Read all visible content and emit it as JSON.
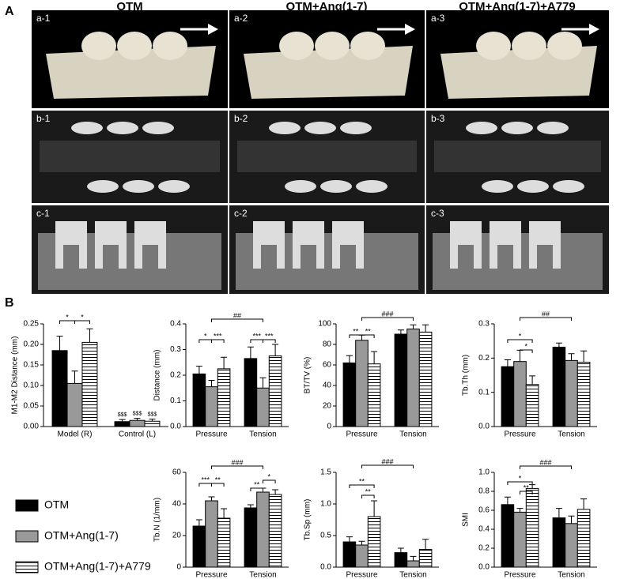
{
  "panel_a": {
    "label": "A",
    "columns": [
      "OTM",
      "OTM+Ang(1-7)",
      "OTM+Ang(1-7)+A779"
    ],
    "tiles": [
      [
        "a-1",
        "a-2",
        "a-3"
      ],
      [
        "b-1",
        "b-2",
        "b-3"
      ],
      [
        "c-1",
        "c-2",
        "c-3"
      ]
    ]
  },
  "panel_b": {
    "label": "B"
  },
  "chart_data": [
    {
      "type": "bar",
      "y_label": "M1-M2 Distance (mm)",
      "categories": [
        "Model (R)",
        "Control (L)"
      ],
      "series": [
        {
          "name": "OTM",
          "color": "#000000",
          "values": [
            0.185,
            0.012
          ],
          "errors": [
            0.035,
            0.005
          ]
        },
        {
          "name": "OTM+Ang(1-7)",
          "color": "#999999",
          "values": [
            0.105,
            0.015
          ],
          "errors": [
            0.03,
            0.005
          ]
        },
        {
          "name": "OTM+Ang(1-7)+A779",
          "color": "#ffffff",
          "pattern": "horizontal-stripes",
          "values": [
            0.205,
            0.013
          ],
          "errors": [
            0.033,
            0.005
          ]
        }
      ],
      "ylim": [
        0,
        0.25
      ],
      "yticks": [
        {
          "value": 0,
          "label": "0.00"
        },
        0.05,
        {
          "value": 0.1,
          "label": "0.10"
        },
        0.15,
        {
          "value": 0.2,
          "label": "0.20"
        },
        0.25
      ],
      "annotations": [
        "*",
        "*",
        "$$$",
        "$$$",
        "$$$"
      ]
    },
    {
      "type": "bar",
      "y_label": "Distance (mm)",
      "categories": [
        "Pressure",
        "Tension"
      ],
      "series": [
        {
          "name": "OTM",
          "color": "#000000",
          "values": [
            0.205,
            0.265
          ],
          "errors": [
            0.03,
            0.045
          ]
        },
        {
          "name": "OTM+Ang(1-7)",
          "color": "#999999",
          "values": [
            0.155,
            0.15
          ],
          "errors": [
            0.025,
            0.04
          ]
        },
        {
          "name": "OTM+Ang(1-7)+A779",
          "color": "#ffffff",
          "pattern": "horizontal-stripes",
          "values": [
            0.225,
            0.275
          ],
          "errors": [
            0.045,
            0.045
          ]
        }
      ],
      "ylim": [
        0,
        0.4
      ],
      "yticks": [
        {
          "value": 0,
          "label": "0.0"
        },
        0.1,
        0.2,
        0.3,
        0.4
      ],
      "annotations": [
        "##",
        "*",
        "***",
        "***",
        "***"
      ]
    },
    {
      "type": "bar",
      "y_label": "BT/TV (%)",
      "categories": [
        "Pressure",
        "Tension"
      ],
      "series": [
        {
          "name": "OTM",
          "color": "#000000",
          "values": [
            62,
            90
          ],
          "errors": [
            7,
            4
          ]
        },
        {
          "name": "OTM+Ang(1-7)",
          "color": "#999999",
          "values": [
            84,
            95
          ],
          "errors": [
            5,
            4
          ]
        },
        {
          "name": "OTM+Ang(1-7)+A779",
          "color": "#ffffff",
          "pattern": "horizontal-stripes",
          "values": [
            61,
            92
          ],
          "errors": [
            12,
            7
          ]
        }
      ],
      "ylim": [
        0,
        100
      ],
      "yticks": [
        0,
        20,
        40,
        60,
        80,
        100
      ],
      "annotations": [
        "###",
        "**",
        "**"
      ]
    },
    {
      "type": "bar",
      "y_label": "Tb.Th (mm)",
      "categories": [
        "Pressure",
        "Tension"
      ],
      "series": [
        {
          "name": "OTM",
          "color": "#000000",
          "values": [
            0.175,
            0.232
          ],
          "errors": [
            0.02,
            0.012
          ]
        },
        {
          "name": "OTM+Ang(1-7)",
          "color": "#999999",
          "values": [
            0.19,
            0.193
          ],
          "errors": [
            0.033,
            0.02
          ]
        },
        {
          "name": "OTM+Ang(1-7)+A779",
          "color": "#ffffff",
          "pattern": "horizontal-stripes",
          "values": [
            0.123,
            0.188
          ],
          "errors": [
            0.025,
            0.033
          ]
        }
      ],
      "ylim": [
        0,
        0.3
      ],
      "yticks": [
        {
          "value": 0,
          "label": "0.0"
        },
        0.1,
        0.2,
        0.3
      ],
      "annotations": [
        "##",
        "*",
        "*"
      ]
    },
    {
      "type": "bar",
      "y_label": "Tb.N (1/mm)",
      "categories": [
        "Pressure",
        "Tension"
      ],
      "series": [
        {
          "name": "OTM",
          "color": "#000000",
          "values": [
            26,
            37.5
          ],
          "errors": [
            4,
            2
          ]
        },
        {
          "name": "OTM+Ang(1-7)",
          "color": "#999999",
          "values": [
            42,
            47.5
          ],
          "errors": [
            2.5,
            2.5
          ]
        },
        {
          "name": "OTM+Ang(1-7)+A779",
          "color": "#ffffff",
          "pattern": "horizontal-stripes",
          "values": [
            31,
            46
          ],
          "errors": [
            6,
            3
          ]
        }
      ],
      "ylim": [
        0,
        60
      ],
      "yticks": [
        0,
        20,
        40,
        60
      ],
      "annotations": [
        "###",
        "***",
        "**",
        "**",
        "*"
      ]
    },
    {
      "type": "bar",
      "y_label": "Tb.Sp (mm)",
      "categories": [
        "Pressure",
        "Tension"
      ],
      "series": [
        {
          "name": "OTM",
          "color": "#000000",
          "values": [
            0.4,
            0.23
          ],
          "errors": [
            0.08,
            0.07
          ]
        },
        {
          "name": "OTM+Ang(1-7)",
          "color": "#999999",
          "values": [
            0.35,
            0.1
          ],
          "errors": [
            0.06,
            0.07
          ]
        },
        {
          "name": "OTM+Ang(1-7)+A779",
          "color": "#ffffff",
          "pattern": "horizontal-stripes",
          "values": [
            0.8,
            0.28
          ],
          "errors": [
            0.25,
            0.16
          ]
        }
      ],
      "ylim": [
        0,
        1.5
      ],
      "yticks": [
        {
          "value": 0,
          "label": "0.0"
        },
        0.5,
        {
          "value": 1,
          "label": "1.0"
        },
        1.5
      ],
      "annotations": [
        "###",
        "**",
        "**"
      ]
    },
    {
      "type": "bar",
      "y_label": "SMI",
      "categories": [
        "Pressure",
        "Tension"
      ],
      "series": [
        {
          "name": "OTM",
          "color": "#000000",
          "values": [
            0.66,
            0.52
          ],
          "errors": [
            0.08,
            0.1
          ]
        },
        {
          "name": "OTM+Ang(1-7)",
          "color": "#999999",
          "values": [
            0.58,
            0.46
          ],
          "errors": [
            0.04,
            0.08
          ]
        },
        {
          "name": "OTM+Ang(1-7)+A779",
          "color": "#ffffff",
          "pattern": "horizontal-stripes",
          "values": [
            0.83,
            0.61
          ],
          "errors": [
            0.04,
            0.11
          ]
        }
      ],
      "ylim": [
        0,
        1
      ],
      "yticks": [
        {
          "value": 0,
          "label": "0.0"
        },
        0.2,
        0.4,
        0.6,
        0.8,
        {
          "value": 1,
          "label": "1.0"
        }
      ],
      "annotations": [
        "###",
        "*",
        "**"
      ]
    }
  ]
}
